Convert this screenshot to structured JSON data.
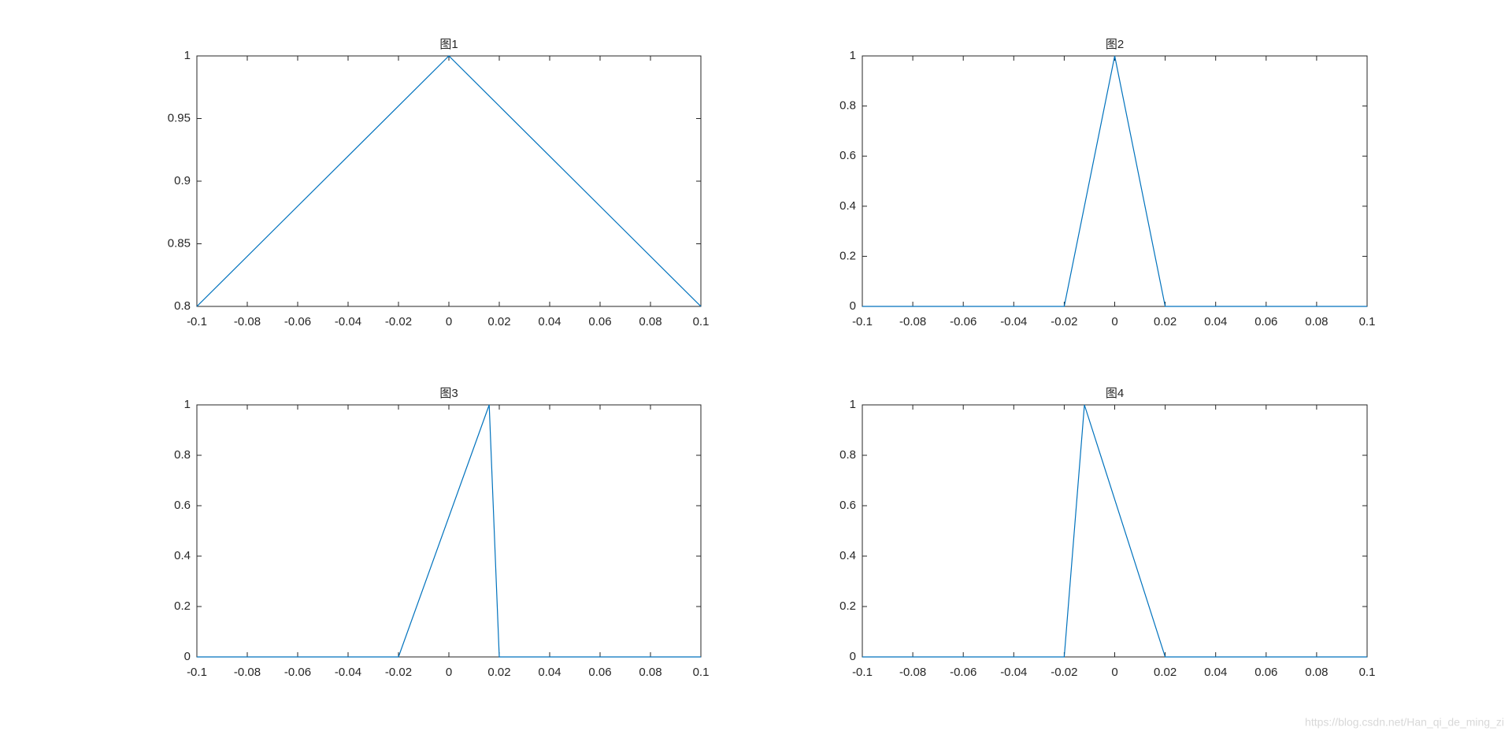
{
  "chart_data": [
    {
      "type": "line",
      "title": "图1",
      "x": [
        -0.1,
        0,
        0.1
      ],
      "values": [
        0.8,
        1,
        0.8
      ],
      "color": "#0072bd",
      "xlim": [
        -0.1,
        0.1
      ],
      "xticks": [
        -0.1,
        -0.08,
        -0.06,
        -0.04,
        -0.02,
        0,
        0.02,
        0.04,
        0.06,
        0.08,
        0.1
      ],
      "ylim": [
        0.8,
        1
      ],
      "yticks": [
        0.8,
        0.85,
        0.9,
        0.95,
        1
      ]
    },
    {
      "type": "line",
      "title": "图2",
      "x": [
        -0.1,
        -0.02,
        0,
        0.02,
        0.1
      ],
      "values": [
        0,
        0,
        1,
        0,
        0
      ],
      "color": "#0072bd",
      "xlim": [
        -0.1,
        0.1
      ],
      "xticks": [
        -0.1,
        -0.08,
        -0.06,
        -0.04,
        -0.02,
        0,
        0.02,
        0.04,
        0.06,
        0.08,
        0.1
      ],
      "ylim": [
        0,
        1
      ],
      "yticks": [
        0,
        0.2,
        0.4,
        0.6,
        0.8,
        1
      ]
    },
    {
      "type": "line",
      "title": "图3",
      "x": [
        -0.1,
        -0.02,
        0.016,
        0.02,
        0.1
      ],
      "values": [
        0,
        0,
        1,
        0,
        0
      ],
      "color": "#0072bd",
      "xlim": [
        -0.1,
        0.1
      ],
      "xticks": [
        -0.1,
        -0.08,
        -0.06,
        -0.04,
        -0.02,
        0,
        0.02,
        0.04,
        0.06,
        0.08,
        0.1
      ],
      "ylim": [
        0,
        1
      ],
      "yticks": [
        0,
        0.2,
        0.4,
        0.6,
        0.8,
        1
      ]
    },
    {
      "type": "line",
      "title": "图4",
      "x": [
        -0.1,
        -0.02,
        -0.012,
        0.02,
        0.1
      ],
      "values": [
        0,
        0,
        1,
        0,
        0
      ],
      "color": "#0072bd",
      "xlim": [
        -0.1,
        0.1
      ],
      "xticks": [
        -0.1,
        -0.08,
        -0.06,
        -0.04,
        -0.02,
        0,
        0.02,
        0.04,
        0.06,
        0.08,
        0.1
      ],
      "ylim": [
        0,
        1
      ],
      "yticks": [
        0,
        0.2,
        0.4,
        0.6,
        0.8,
        1
      ]
    }
  ],
  "watermark": "https://blog.csdn.net/Han_qi_de_ming_zi"
}
